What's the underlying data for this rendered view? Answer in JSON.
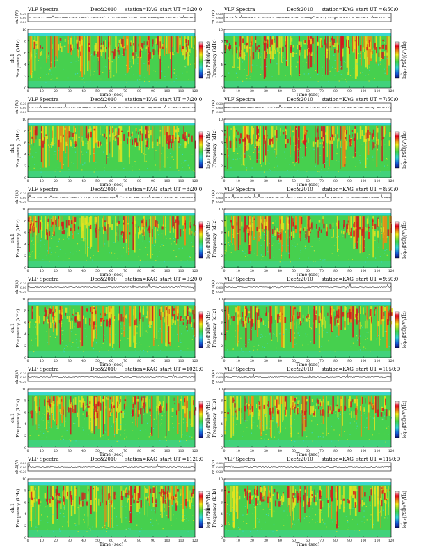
{
  "panel_header": {
    "title": "VLF Spectra",
    "date": "Dec&2010",
    "station": "station=KAG",
    "start_prefix": "start UT ="
  },
  "axes_text": {
    "channel_label": "ch.1(V)",
    "freq_label_ch": "ch.1",
    "freq_label": "Frequency (kHz)",
    "time_label": "Time (sec)",
    "colorbar_label": "log₁₀(PSD)(V²/Hz)"
  },
  "chart_data": [
    {
      "type": "heatmap",
      "start_ut": "6:20:0",
      "channel_ylim": [
        -0.2,
        0.2
      ],
      "channel_ticks": [
        "0.20",
        "0.00",
        "-0.20"
      ],
      "freq_ylim": [
        0,
        10
      ],
      "freq_ticks": [
        "0",
        "2",
        "4",
        "6",
        "8",
        "10"
      ],
      "time_xlim": [
        0,
        120
      ],
      "time_ticks": [
        "0",
        "10",
        "20",
        "30",
        "40",
        "50",
        "60",
        "70",
        "80",
        "90",
        "100",
        "110",
        "120"
      ]
    },
    {
      "type": "heatmap",
      "start_ut": "6:50:0",
      "channel_ylim": [
        -0.2,
        0.2
      ],
      "channel_ticks": [
        "0.20",
        "0.00",
        "-0.20"
      ],
      "freq_ylim": [
        0,
        10
      ],
      "freq_ticks": [
        "0",
        "2",
        "4",
        "6",
        "8",
        "10"
      ],
      "time_xlim": [
        0,
        120
      ],
      "time_ticks": [
        "0",
        "10",
        "20",
        "30",
        "40",
        "50",
        "60",
        "70",
        "80",
        "90",
        "100",
        "110",
        "120"
      ]
    },
    {
      "type": "heatmap",
      "start_ut": "7:20:0",
      "channel_ylim": [
        -0.2,
        0.2
      ],
      "channel_ticks": [
        "0.20",
        "0.00",
        "-0.20"
      ],
      "freq_ylim": [
        0,
        10
      ],
      "freq_ticks": [
        "0",
        "2",
        "4",
        "6",
        "8",
        "10"
      ],
      "time_xlim": [
        0,
        120
      ],
      "time_ticks": [
        "0",
        "10",
        "20",
        "30",
        "40",
        "50",
        "60",
        "70",
        "80",
        "90",
        "100",
        "110",
        "120"
      ]
    },
    {
      "type": "heatmap",
      "start_ut": "7:50:0",
      "channel_ylim": [
        -0.2,
        0.2
      ],
      "channel_ticks": [
        "0.20",
        "0.00",
        "-0.20"
      ],
      "freq_ylim": [
        0,
        10
      ],
      "freq_ticks": [
        "0",
        "2",
        "4",
        "6",
        "8",
        "10"
      ],
      "time_xlim": [
        0,
        120
      ],
      "time_ticks": [
        "0",
        "10",
        "20",
        "30",
        "40",
        "50",
        "60",
        "70",
        "80",
        "90",
        "100",
        "110",
        "120"
      ]
    },
    {
      "type": "heatmap",
      "start_ut": "8:20:0",
      "channel_ylim": [
        -0.2,
        0.2
      ],
      "channel_ticks": [
        "0.20",
        "0.00",
        "-0.20"
      ],
      "freq_ylim": [
        0,
        10
      ],
      "freq_ticks": [
        "0",
        "2",
        "4",
        "6",
        "8",
        "10"
      ],
      "time_xlim": [
        0,
        120
      ],
      "time_ticks": [
        "0",
        "10",
        "20",
        "30",
        "40",
        "50",
        "60",
        "70",
        "80",
        "90",
        "100",
        "110",
        "120"
      ]
    },
    {
      "type": "heatmap",
      "start_ut": "8:50:0",
      "channel_ylim": [
        -0.2,
        0.2
      ],
      "channel_ticks": [
        "0.20",
        "0.00",
        "-0.20"
      ],
      "freq_ylim": [
        0,
        10
      ],
      "freq_ticks": [
        "0",
        "2",
        "4",
        "6",
        "8",
        "10"
      ],
      "time_xlim": [
        0,
        120
      ],
      "time_ticks": [
        "0",
        "10",
        "20",
        "30",
        "40",
        "50",
        "60",
        "70",
        "80",
        "90",
        "100",
        "110",
        "120"
      ]
    },
    {
      "type": "heatmap",
      "start_ut": "9:20:0",
      "channel_ylim": [
        -0.2,
        0.2
      ],
      "channel_ticks": [
        "0.20",
        "0.00",
        "-0.20"
      ],
      "freq_ylim": [
        0,
        10
      ],
      "freq_ticks": [
        "0",
        "2",
        "4",
        "6",
        "8",
        "10"
      ],
      "time_xlim": [
        0,
        120
      ],
      "time_ticks": [
        "0",
        "10",
        "20",
        "30",
        "40",
        "50",
        "60",
        "70",
        "80",
        "90",
        "100",
        "110",
        "120"
      ]
    },
    {
      "type": "heatmap",
      "start_ut": "9:50:0",
      "channel_ylim": [
        -0.2,
        0.2
      ],
      "channel_ticks": [
        "0.20",
        "0.00",
        "-0.20"
      ],
      "freq_ylim": [
        0,
        10
      ],
      "freq_ticks": [
        "0",
        "2",
        "4",
        "6",
        "8",
        "10"
      ],
      "time_xlim": [
        0,
        120
      ],
      "time_ticks": [
        "0",
        "10",
        "20",
        "30",
        "40",
        "50",
        "60",
        "70",
        "80",
        "90",
        "100",
        "110",
        "120"
      ]
    },
    {
      "type": "heatmap",
      "start_ut": "1020:0",
      "channel_ylim": [
        -0.2,
        0.2
      ],
      "channel_ticks": [
        "0.20",
        "0.00",
        "-0.20"
      ],
      "freq_ylim": [
        0,
        10
      ],
      "freq_ticks": [
        "0",
        "2",
        "4",
        "6",
        "8",
        "10"
      ],
      "time_xlim": [
        0,
        120
      ],
      "time_ticks": [
        "0",
        "10",
        "20",
        "30",
        "40",
        "50",
        "60",
        "70",
        "80",
        "90",
        "100",
        "110",
        "120"
      ]
    },
    {
      "type": "heatmap",
      "start_ut": "1050:0",
      "channel_ylim": [
        -0.2,
        0.2
      ],
      "channel_ticks": [
        "0.20",
        "0.00",
        "-0.20"
      ],
      "freq_ylim": [
        0,
        10
      ],
      "freq_ticks": [
        "0",
        "2",
        "4",
        "6",
        "8",
        "10"
      ],
      "time_xlim": [
        0,
        120
      ],
      "time_ticks": [
        "0",
        "10",
        "20",
        "30",
        "40",
        "50",
        "60",
        "70",
        "80",
        "90",
        "100",
        "110",
        "120"
      ]
    },
    {
      "type": "heatmap",
      "start_ut": "1120:0",
      "channel_ylim": [
        -0.2,
        0.2
      ],
      "channel_ticks": [
        "0.20",
        "0.00",
        "-0.20"
      ],
      "freq_ylim": [
        0,
        10
      ],
      "freq_ticks": [
        "0",
        "2",
        "4",
        "6",
        "8",
        "10"
      ],
      "time_xlim": [
        0,
        120
      ],
      "time_ticks": [
        "0",
        "10",
        "20",
        "30",
        "40",
        "50",
        "60",
        "70",
        "80",
        "90",
        "100",
        "110",
        "120"
      ]
    },
    {
      "type": "heatmap",
      "start_ut": "1150:0",
      "channel_ylim": [
        -0.2,
        0.2
      ],
      "channel_ticks": [
        "0.20",
        "0.00",
        "-0.20"
      ],
      "freq_ylim": [
        0,
        10
      ],
      "freq_ticks": [
        "0",
        "2",
        "4",
        "6",
        "8",
        "10"
      ],
      "time_xlim": [
        0,
        120
      ],
      "time_ticks": [
        "0",
        "10",
        "20",
        "30",
        "40",
        "50",
        "60",
        "70",
        "80",
        "90",
        "100",
        "110",
        "120"
      ]
    }
  ],
  "colorbar_ticks": [
    "-1",
    "-4",
    "-7"
  ],
  "colors": {
    "cb_top": "#ffffff",
    "cb_red": "#e8001c",
    "cb_yellow": "#f2ec1a",
    "cb_green": "#3fd64a",
    "cb_cyan": "#33d6d6",
    "cb_blue": "#1555d8",
    "cb_bottom": "#141478",
    "band_cyan": "#3ad8d0",
    "spec_green": "#46d04e",
    "spec_yellow": "#e8e41e",
    "spec_orange": "#f28a12",
    "spec_red": "#d8141c"
  }
}
